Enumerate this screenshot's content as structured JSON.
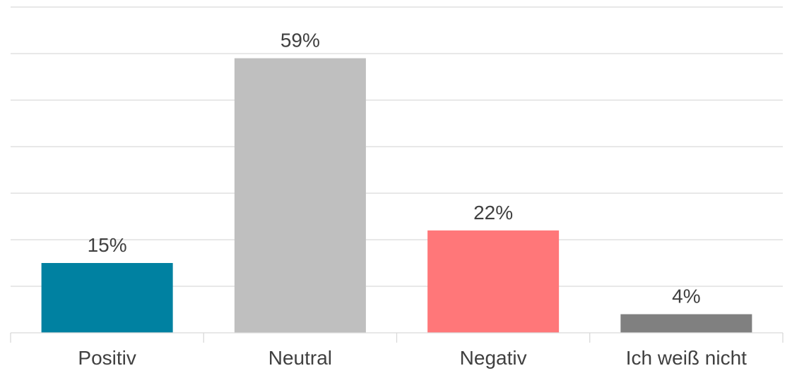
{
  "chart_data": {
    "type": "bar",
    "categories": [
      "Positiv",
      "Neutral",
      "Negativ",
      "Ich weiß nicht"
    ],
    "values": [
      15,
      59,
      22,
      4
    ],
    "data_labels": [
      "15%",
      "59%",
      "22%",
      "4%"
    ],
    "colors": [
      "#0081a1",
      "#bfbfbf",
      "#ff7779",
      "#808080"
    ],
    "ylim": [
      0,
      70
    ],
    "grid": true,
    "title": "",
    "xlabel": "",
    "ylabel": ""
  }
}
